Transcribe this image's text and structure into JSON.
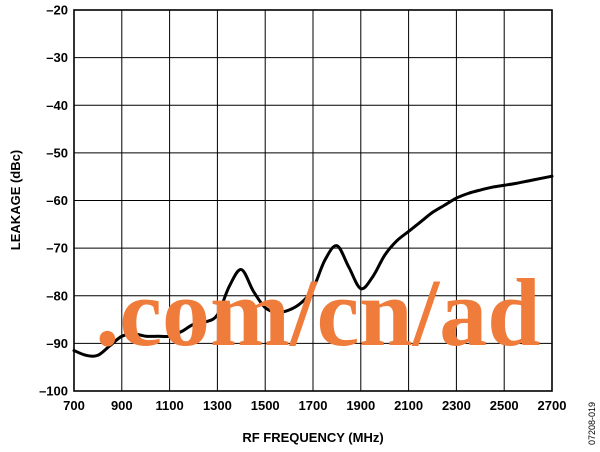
{
  "chart_data": {
    "type": "line",
    "xlabel": "RF FREQUENCY (MHz)",
    "ylabel": "LEAKAGE (dBc)",
    "xlim": [
      700,
      2700
    ],
    "ylim": [
      -100,
      -20
    ],
    "x_ticks": [
      700,
      900,
      1100,
      1300,
      1500,
      1700,
      1900,
      2100,
      2300,
      2500,
      2700
    ],
    "y_ticks": [
      -20,
      -30,
      -40,
      -50,
      -60,
      -70,
      -80,
      -90,
      -100
    ],
    "x_tick_labels": [
      "700",
      "900",
      "1100",
      "1300",
      "1500",
      "1700",
      "1900",
      "2100",
      "2300",
      "2500",
      "2700"
    ],
    "y_tick_labels": [
      "–20",
      "–30",
      "–40",
      "–50",
      "–60",
      "–70",
      "–80",
      "–90",
      "–100"
    ],
    "grid": true,
    "series": [
      {
        "x": [
          700,
          750,
          800,
          850,
          900,
          950,
          1000,
          1050,
          1100,
          1150,
          1200,
          1250,
          1300,
          1350,
          1400,
          1450,
          1500,
          1550,
          1600,
          1650,
          1700,
          1750,
          1800,
          1850,
          1900,
          1950,
          2000,
          2050,
          2100,
          2150,
          2200,
          2250,
          2300,
          2350,
          2400,
          2450,
          2500,
          2550,
          2600,
          2650,
          2700
        ],
        "values": [
          -91.5,
          -92.5,
          -92.5,
          -90.5,
          -88.5,
          -88.0,
          -88.5,
          -88.5,
          -88.5,
          -87.5,
          -86.0,
          -85.5,
          -84.0,
          -78.0,
          -74.5,
          -79.0,
          -82.5,
          -83.5,
          -83.0,
          -81.5,
          -78.5,
          -72.5,
          -69.5,
          -74.0,
          -78.5,
          -76.0,
          -71.5,
          -68.5,
          -66.5,
          -64.5,
          -62.5,
          -61.0,
          -59.5,
          -58.5,
          -57.8,
          -57.2,
          -56.8,
          -56.4,
          -55.9,
          -55.4,
          -54.9
        ]
      }
    ]
  },
  "figure_id": "07208-019",
  "watermark": ".com/cn/ad",
  "colors": {
    "line": "#000000",
    "grid": "#000000",
    "watermark": "#f07c3c"
  }
}
